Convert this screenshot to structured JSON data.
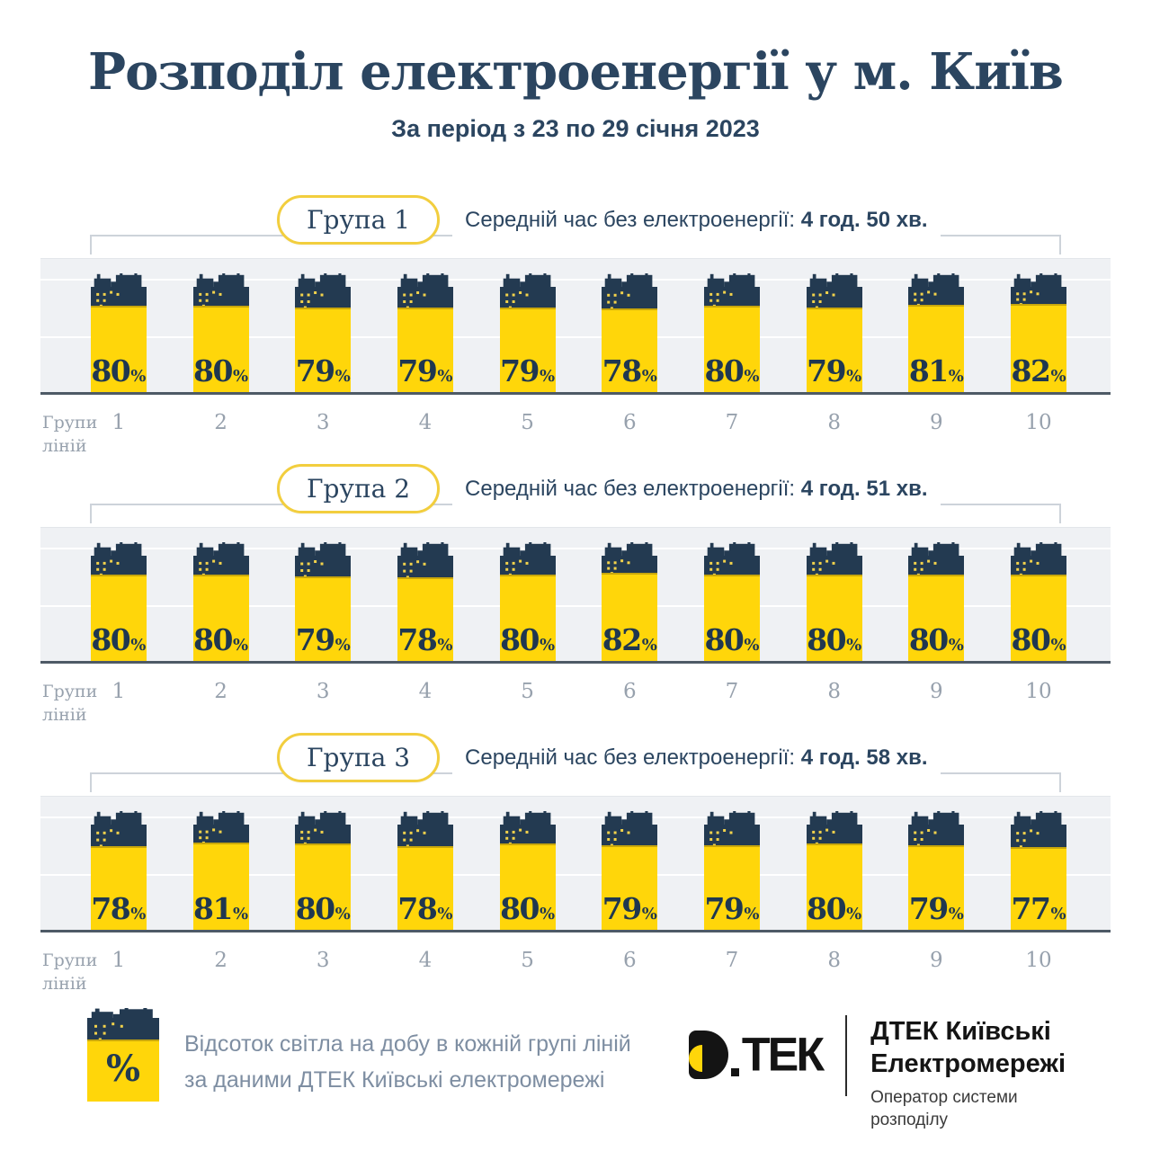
{
  "title": "Розподіл електроенергії у м. Київ",
  "subtitle": "За період з 23 по 29 січня 2023",
  "percent_suffix": "%",
  "axis": {
    "group_label_line1": "Групи",
    "group_label_line2": "ліній",
    "categories": [
      "1",
      "2",
      "3",
      "4",
      "5",
      "6",
      "7",
      "8",
      "9",
      "10"
    ]
  },
  "groups": [
    {
      "label": "Група 1",
      "avg_prefix": "Середній час без електроенергії: ",
      "avg_value": "4 год. 50 хв.",
      "values": [
        80,
        80,
        79,
        79,
        79,
        78,
        80,
        79,
        81,
        82
      ]
    },
    {
      "label": "Група 2",
      "avg_prefix": "Середній час без електроенергії: ",
      "avg_value": "4 год. 51 хв.",
      "values": [
        80,
        80,
        79,
        78,
        80,
        82,
        80,
        80,
        80,
        80
      ]
    },
    {
      "label": "Група 3",
      "avg_prefix": "Середній час без електроенергії: ",
      "avg_value": "4 год. 58 хв.",
      "values": [
        78,
        81,
        80,
        78,
        80,
        79,
        79,
        80,
        79,
        77
      ]
    }
  ],
  "legend": {
    "icon_symbol": "%",
    "line1": "Відсоток світла на добу в кожній групі ліній",
    "line2": "за даними ДТЕК Київські електромережі"
  },
  "logo": {
    "brand_letters": "ТЕК",
    "company_line1": "ДТЕК Київські",
    "company_line2": "Електромережі",
    "operator_line1": "Оператор системи",
    "operator_line2": "розподілу"
  },
  "colors": {
    "navy": "#233A51",
    "yellow": "#FFD60A",
    "boundary_gold": "#C9A70B",
    "dot_yellow": "#F2D24B",
    "pill_border": "#F2CE3E",
    "band_bg": "#EFF1F4",
    "axis_line": "#4E5A66",
    "gray_text": "#97A1AD"
  },
  "chart_data": [
    {
      "type": "bar",
      "title": "Група 1 — Середній час без електроенергії: 4 год. 50 хв.",
      "categories": [
        "1",
        "2",
        "3",
        "4",
        "5",
        "6",
        "7",
        "8",
        "9",
        "10"
      ],
      "values": [
        80,
        80,
        79,
        79,
        79,
        78,
        80,
        79,
        81,
        82
      ],
      "xlabel": "Групи ліній",
      "ylabel": "Відсоток світла на добу, %",
      "ylim": [
        0,
        100
      ],
      "grid": true,
      "legend_position": "none"
    },
    {
      "type": "bar",
      "title": "Група 2 — Середній час без електроенергії: 4 год. 51 хв.",
      "categories": [
        "1",
        "2",
        "3",
        "4",
        "5",
        "6",
        "7",
        "8",
        "9",
        "10"
      ],
      "values": [
        80,
        80,
        79,
        78,
        80,
        82,
        80,
        80,
        80,
        80
      ],
      "xlabel": "Групи ліній",
      "ylabel": "Відсоток світла на добу, %",
      "ylim": [
        0,
        100
      ],
      "grid": true,
      "legend_position": "none"
    },
    {
      "type": "bar",
      "title": "Група 3 — Середній час без електроенергії: 4 год. 58 хв.",
      "categories": [
        "1",
        "2",
        "3",
        "4",
        "5",
        "6",
        "7",
        "8",
        "9",
        "10"
      ],
      "values": [
        78,
        81,
        80,
        78,
        80,
        79,
        79,
        80,
        79,
        77
      ],
      "xlabel": "Групи ліній",
      "ylabel": "Відсоток світла на добу, %",
      "ylim": [
        0,
        100
      ],
      "grid": true,
      "legend_position": "none"
    }
  ]
}
